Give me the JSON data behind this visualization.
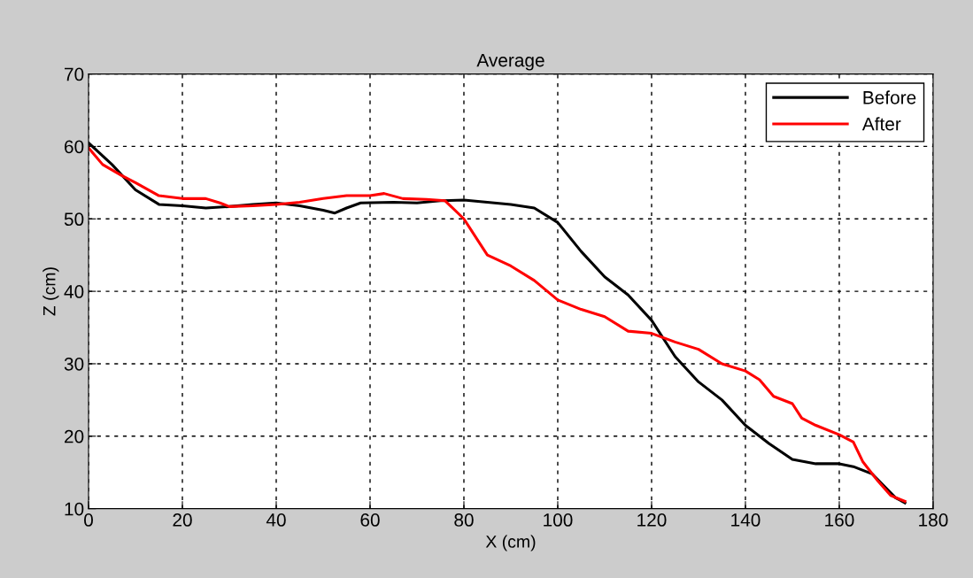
{
  "chart_data": {
    "type": "line",
    "title": "Average",
    "xlabel": "X (cm)",
    "ylabel": "Z (cm)",
    "xlim": [
      0,
      180
    ],
    "xticks": [
      0,
      20,
      40,
      60,
      80,
      100,
      120,
      140,
      160,
      180
    ],
    "ylim": [
      10,
      70
    ],
    "yticks": [
      10,
      20,
      30,
      40,
      50,
      60,
      70
    ],
    "grid": true,
    "legend": "top right",
    "series": [
      {
        "name": "Before",
        "color": "#000000",
        "x": [
          0,
          5,
          10,
          15,
          20,
          25,
          30,
          35,
          40,
          45,
          50,
          52.5,
          55,
          58,
          65,
          70,
          75,
          80,
          85,
          90,
          95,
          100,
          105,
          110,
          115,
          120,
          125,
          130,
          135,
          140,
          145,
          150,
          155,
          160,
          163,
          167,
          172,
          174
        ],
        "values": [
          60.5,
          57.5,
          54,
          52,
          51.8,
          51.5,
          51.7,
          52,
          52.2,
          51.8,
          51.2,
          50.8,
          51.5,
          52.2,
          52.3,
          52.2,
          52.5,
          52.6,
          52.3,
          52,
          51.5,
          49.5,
          45.5,
          42,
          39.5,
          36,
          31,
          27.5,
          25,
          21.5,
          19,
          16.8,
          16.2,
          16.2,
          15.8,
          14.8,
          11.5,
          10.8
        ]
      },
      {
        "name": "After",
        "color": "#ff0000",
        "x": [
          0,
          3,
          7,
          10,
          15,
          20,
          25,
          28,
          30,
          35,
          40,
          45,
          50,
          55,
          60,
          63,
          67,
          72,
          76,
          80,
          83,
          85,
          90,
          95,
          100,
          105,
          110,
          115,
          120,
          125,
          130,
          135,
          140,
          143,
          146,
          150,
          152,
          155,
          160,
          163,
          165,
          168,
          171,
          174
        ],
        "values": [
          59.8,
          57.5,
          56,
          55,
          53.2,
          52.8,
          52.8,
          52.2,
          51.7,
          51.8,
          52,
          52.3,
          52.8,
          53.2,
          53.2,
          53.5,
          52.8,
          52.7,
          52.5,
          50,
          47,
          45,
          43.5,
          41.5,
          38.8,
          37.5,
          36.5,
          34.5,
          34.2,
          33,
          32,
          30,
          29,
          27.8,
          25.5,
          24.5,
          22.5,
          21.5,
          20.2,
          19.2,
          16.5,
          14,
          11.8,
          11
        ]
      }
    ]
  }
}
